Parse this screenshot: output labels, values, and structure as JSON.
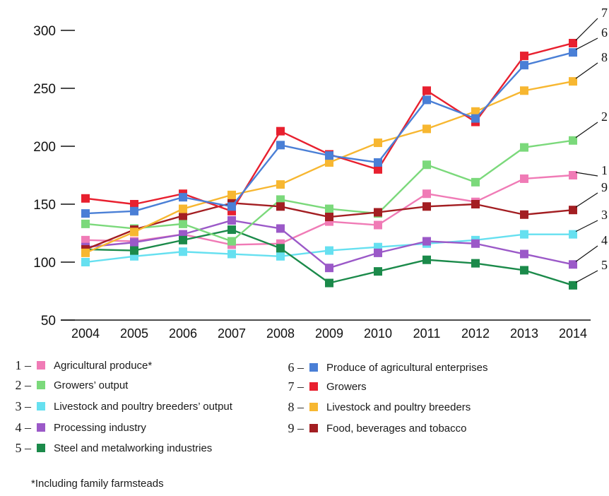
{
  "chart_data": {
    "type": "line",
    "x": [
      "2004",
      "2005",
      "2006",
      "2007",
      "2008",
      "2009",
      "2010",
      "2011",
      "2012",
      "2013",
      "2014"
    ],
    "ylim": [
      50,
      300
    ],
    "yticks": [
      "300",
      "250",
      "200",
      "150",
      "100",
      "50"
    ],
    "grid": false,
    "legend_placement": "bottom",
    "series": [
      {
        "num": "1",
        "name": "Agricultural produce*",
        "color": "#f07bb6",
        "values": [
          119,
          118,
          124,
          115,
          116,
          135,
          132,
          159,
          152,
          172,
          175
        ]
      },
      {
        "num": "2",
        "name": "Growers’ output",
        "color": "#7bd97b",
        "values": [
          133,
          129,
          133,
          118,
          154,
          146,
          142,
          184,
          169,
          199,
          205
        ]
      },
      {
        "num": "3",
        "name": "Livestock and poultry breeders’ output",
        "color": "#66e0f0",
        "values": [
          100,
          105,
          109,
          107,
          105,
          110,
          113,
          116,
          119,
          124,
          124
        ]
      },
      {
        "num": "4",
        "name": "Processing industry",
        "color": "#9b59c8",
        "values": [
          113,
          117,
          124,
          136,
          129,
          95,
          108,
          118,
          116,
          107,
          98
        ]
      },
      {
        "num": "5",
        "name": "Steel and metalworking industries",
        "color": "#1b8a4a",
        "values": [
          111,
          110,
          119,
          128,
          112,
          82,
          92,
          102,
          99,
          93,
          80
        ]
      },
      {
        "num": "6",
        "name": "Produce of agricultural enterprises",
        "color": "#4a7fd6",
        "values": [
          142,
          144,
          156,
          148,
          201,
          192,
          186,
          240,
          224,
          270,
          281
        ]
      },
      {
        "num": "7",
        "name": "Growers",
        "color": "#e8202f",
        "values": [
          155,
          150,
          159,
          144,
          213,
          193,
          180,
          248,
          221,
          278,
          289
        ]
      },
      {
        "num": "8",
        "name": "Livestock and poultry breeders",
        "color": "#f7b731",
        "values": [
          108,
          126,
          146,
          158,
          167,
          186,
          203,
          215,
          230,
          248,
          256
        ]
      },
      {
        "num": "9",
        "name": "Food, beverages and tobacco",
        "color": "#a31e22",
        "values": [
          111,
          128,
          140,
          151,
          148,
          139,
          143,
          148,
          150,
          141,
          145
        ]
      }
    ]
  },
  "legend": {
    "sep": "–",
    "items": [
      {
        "num": "1",
        "label": "Agricultural produce*"
      },
      {
        "num": "2",
        "label": "Growers’ output"
      },
      {
        "num": "3",
        "label": "Livestock and poultry breeders’ output"
      },
      {
        "num": "4",
        "label": "Processing industry"
      },
      {
        "num": "5",
        "label": "Steel and metalworking industries"
      },
      {
        "num": "6",
        "label": "Produce of agricultural enterprises"
      },
      {
        "num": "7",
        "label": "Growers"
      },
      {
        "num": "8",
        "label": "Livestock and poultry breeders"
      },
      {
        "num": "9",
        "label": "Food, beverages and tobacco"
      }
    ]
  },
  "footnote": "*Including family farmsteads"
}
